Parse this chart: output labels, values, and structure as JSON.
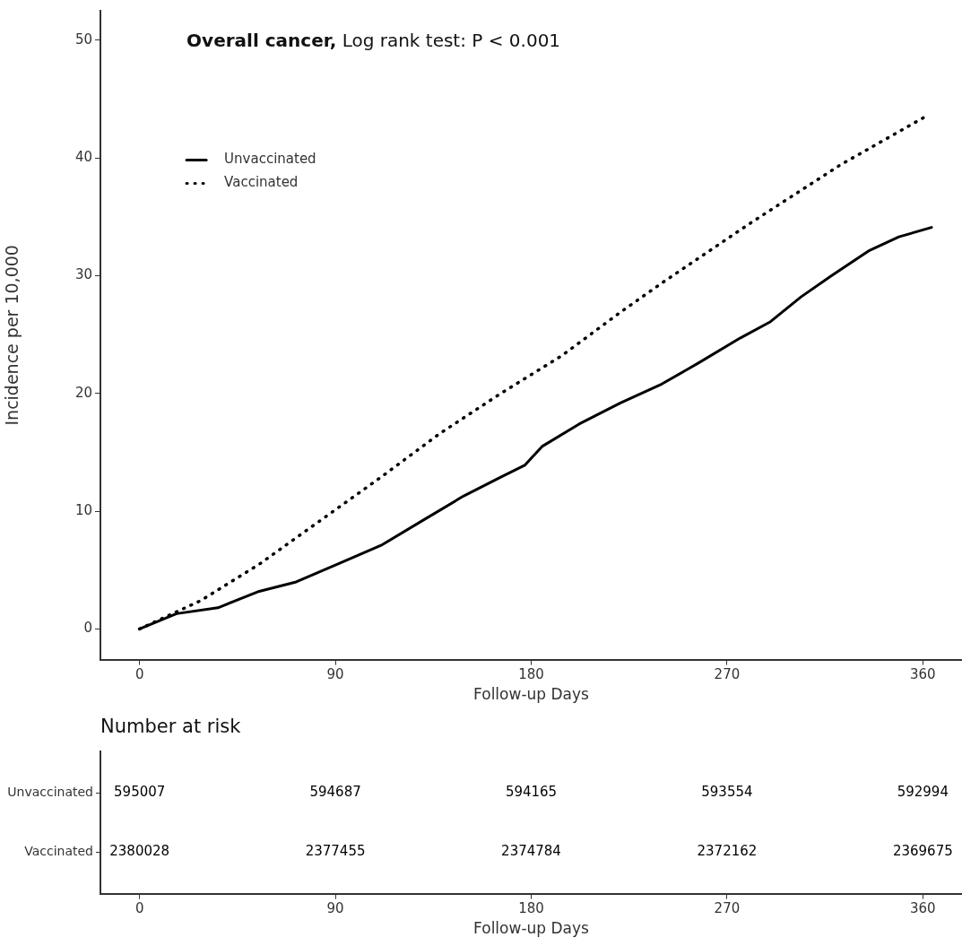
{
  "chart_data": [
    {
      "type": "line",
      "title": "Overall cancer, Log rank test: P < 0.001",
      "xlabel": "Follow-up Days",
      "ylabel": "Incidence per 10,000",
      "series": [
        {
          "name": "Unvaccinated",
          "color": "#000000",
          "line_style": "solid",
          "x": [
            0,
            17,
            36,
            55,
            72,
            91,
            111,
            130,
            149,
            166,
            177,
            185,
            202,
            221,
            240,
            257,
            276,
            290,
            304,
            318,
            335,
            349,
            364
          ],
          "values": [
            0,
            1.3,
            1.8,
            3.2,
            4.0,
            5.5,
            7.1,
            9.2,
            11.3,
            12.9,
            13.9,
            15.5,
            17.4,
            19.2,
            20.8,
            22.6,
            24.7,
            26.1,
            28.2,
            30,
            32.1,
            33.3,
            34.1
          ]
        },
        {
          "name": "Vaccinated",
          "color": "#000000",
          "line_style": "dotted",
          "x": [
            0,
            28,
            55,
            83,
            111,
            138,
            166,
            194,
            221,
            241,
            281,
            322,
            362
          ],
          "values": [
            0,
            2.4,
            5.5,
            9.2,
            12.9,
            16.6,
            20.0,
            23.2,
            26.9,
            29.5,
            34.5,
            39.4,
            43.6
          ]
        }
      ],
      "xlim": [
        -18,
        378
      ],
      "xticks": [
        0,
        90,
        180,
        270,
        360
      ],
      "ylim": [
        -2.6,
        52.5
      ],
      "yticks": [
        0,
        10,
        20,
        30,
        40,
        50
      ],
      "grid": false,
      "legend": "top left",
      "marker": "none"
    },
    {
      "type": "heatmap",
      "title": "Number at risk",
      "xlabel": "Follow-up Days",
      "categories": [
        "0",
        "90",
        "180",
        "270",
        "360"
      ],
      "y_categories": [
        "Unvaccinated",
        "Vaccinated"
      ],
      "cells": [
        [
          595007,
          594687,
          594165,
          593554,
          592994
        ],
        [
          2380028,
          2377455,
          2374784,
          2372162,
          2369675
        ]
      ],
      "data_labels": true
    }
  ]
}
